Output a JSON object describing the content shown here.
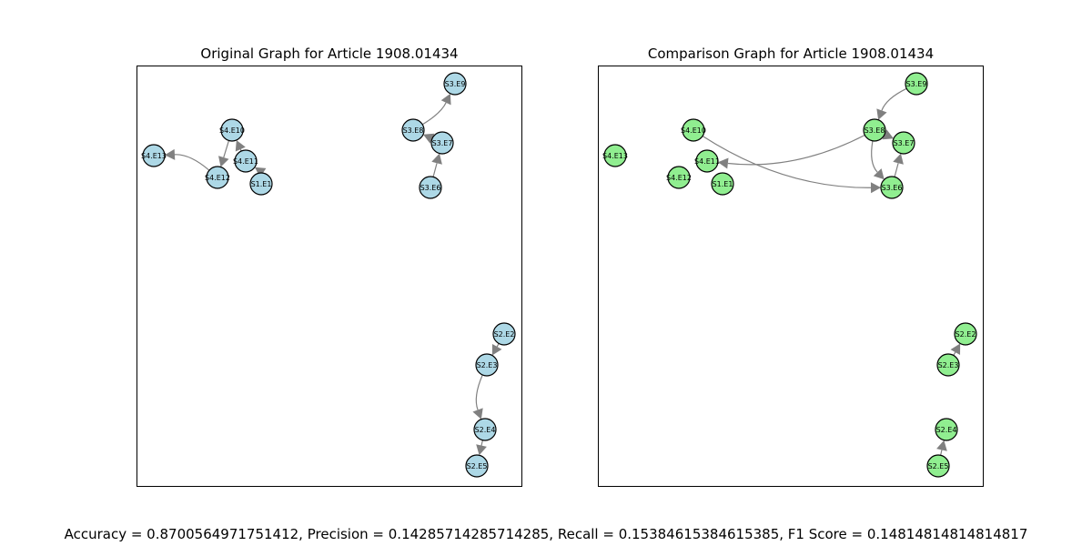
{
  "figure": {
    "left_title": "Original Graph for Article 1908.01434",
    "right_title": "Comparison Graph for Article 1908.01434",
    "metrics": "Accuracy = 0.8700564971751412, Precision = 0.14285714285714285, Recall = 0.15384615384615385, F1 Score = 0.14814814814814817"
  },
  "colors": {
    "original_node": "#add8e6",
    "comparison_node": "#90ee90",
    "edge": "#808080",
    "node_stroke": "#000000"
  },
  "left_graph": {
    "nodes": [
      "S3.E9",
      "S3.E8",
      "S3.E7",
      "S3.E6",
      "S4.E10",
      "S4.E11",
      "S4.E12",
      "S4.E13",
      "S1.E1",
      "S2.E2",
      "S2.E3",
      "S2.E4",
      "S2.E5"
    ],
    "edges": [
      {
        "from": "S3.E8",
        "to": "S3.E9"
      },
      {
        "from": "S3.E7",
        "to": "S3.E8"
      },
      {
        "from": "S3.E6",
        "to": "S3.E7"
      },
      {
        "from": "S4.E11",
        "to": "S4.E10"
      },
      {
        "from": "S4.E10",
        "to": "S4.E12"
      },
      {
        "from": "S1.E1",
        "to": "S4.E11"
      },
      {
        "from": "S4.E12",
        "to": "S4.E13"
      },
      {
        "from": "S2.E2",
        "to": "S2.E3"
      },
      {
        "from": "S2.E3",
        "to": "S2.E4"
      },
      {
        "from": "S2.E4",
        "to": "S2.E5"
      }
    ]
  },
  "right_graph": {
    "nodes": [
      "S3.E9",
      "S3.E8",
      "S3.E7",
      "S3.E6",
      "S4.E10",
      "S4.E11",
      "S4.E12",
      "S4.E13",
      "S1.E1",
      "S2.E2",
      "S2.E3",
      "S2.E4",
      "S2.E5"
    ],
    "edges": [
      {
        "from": "S3.E9",
        "to": "S3.E8"
      },
      {
        "from": "S3.E8",
        "to": "S3.E6"
      },
      {
        "from": "S3.E6",
        "to": "S3.E7"
      },
      {
        "from": "S3.E8",
        "to": "S3.E7"
      },
      {
        "from": "S3.E8",
        "to": "S4.E11"
      },
      {
        "from": "S4.E10",
        "to": "S3.E6"
      },
      {
        "from": "S2.E3",
        "to": "S2.E2"
      },
      {
        "from": "S2.E5",
        "to": "S2.E4"
      }
    ]
  }
}
